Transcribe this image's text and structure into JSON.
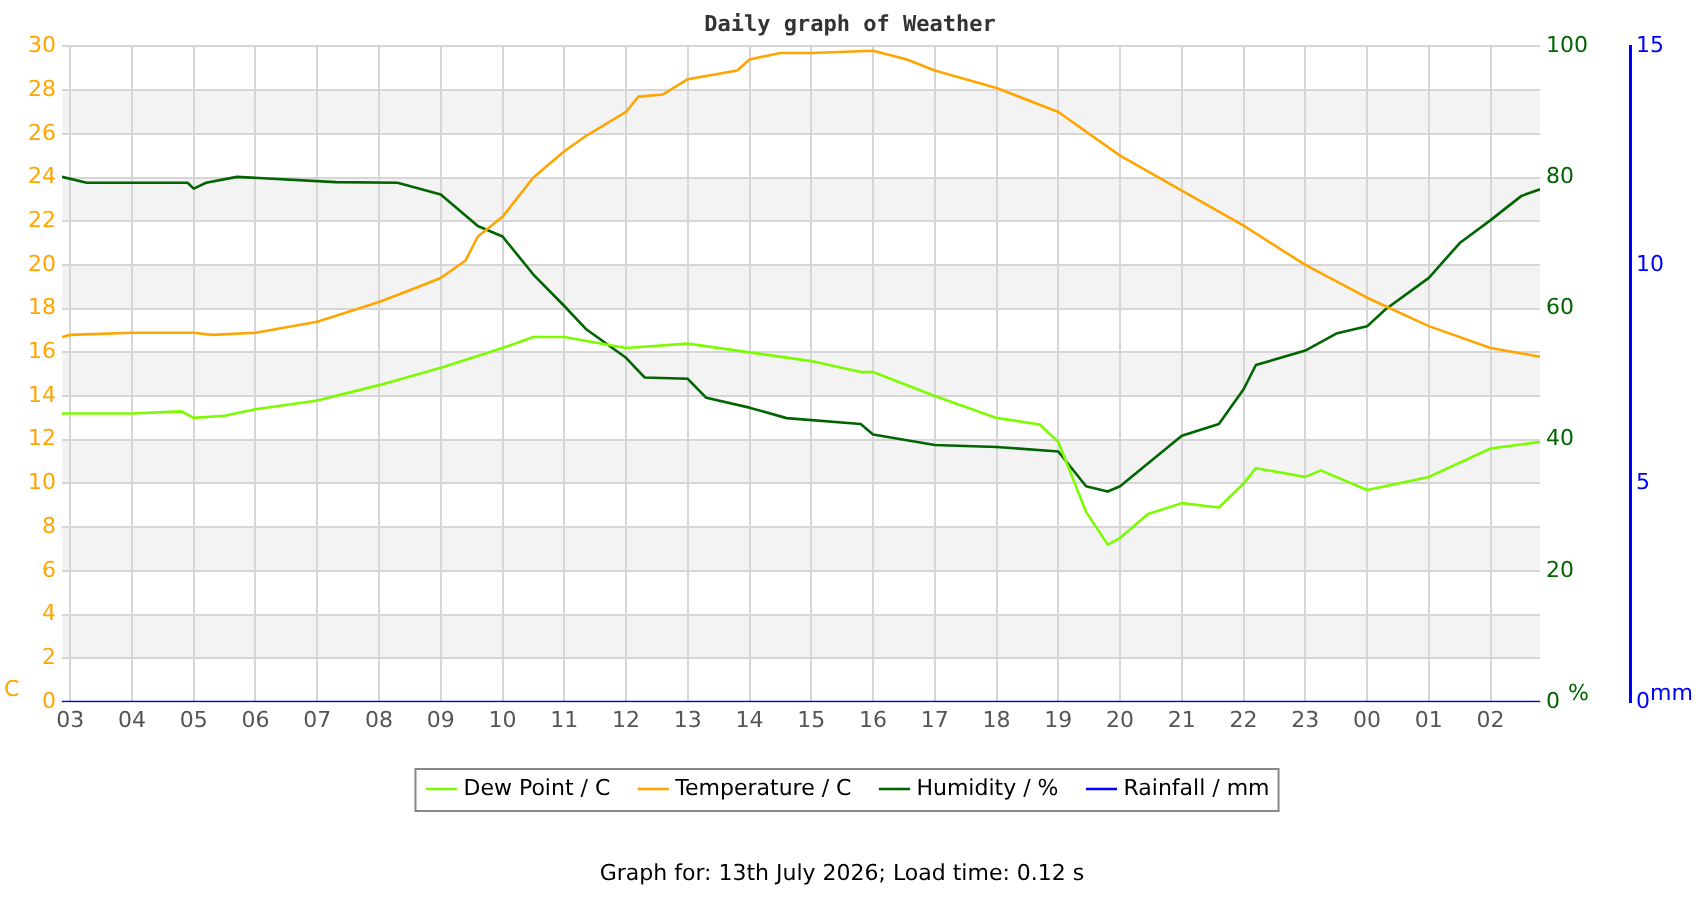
{
  "chart_data": {
    "type": "line",
    "title": "Daily graph of Weather",
    "ylabel": "C",
    "y2label": "%",
    "y3label": "mm",
    "annotations": [
      "Graph for: 13th July 2026; Load time: 0.12 s"
    ],
    "xlim": [
      "2026-07-13T02:52",
      "2026-07-14T02:48"
    ],
    "xticks": [
      {
        "value": "2026-07-13T03:00",
        "label": "03"
      },
      {
        "value": "2026-07-13T04:00",
        "label": "04"
      },
      {
        "value": "2026-07-13T05:00",
        "label": "05"
      },
      {
        "value": "2026-07-13T06:00",
        "label": "06"
      },
      {
        "value": "2026-07-13T07:00",
        "label": "07"
      },
      {
        "value": "2026-07-13T08:00",
        "label": "08"
      },
      {
        "value": "2026-07-13T09:00",
        "label": "09"
      },
      {
        "value": "2026-07-13T10:00",
        "label": "10"
      },
      {
        "value": "2026-07-13T11:00",
        "label": "11"
      },
      {
        "value": "2026-07-13T12:00",
        "label": "12"
      },
      {
        "value": "2026-07-13T13:00",
        "label": "13"
      },
      {
        "value": "2026-07-13T14:00",
        "label": "14"
      },
      {
        "value": "2026-07-13T15:00",
        "label": "15"
      },
      {
        "value": "2026-07-13T16:00",
        "label": "16"
      },
      {
        "value": "2026-07-13T17:00",
        "label": "17"
      },
      {
        "value": "2026-07-13T18:00",
        "label": "18"
      },
      {
        "value": "2026-07-13T19:00",
        "label": "19"
      },
      {
        "value": "2026-07-13T20:00",
        "label": "20"
      },
      {
        "value": "2026-07-13T21:00",
        "label": "21"
      },
      {
        "value": "2026-07-13T22:00",
        "label": "22"
      },
      {
        "value": "2026-07-13T23:00",
        "label": "23"
      },
      {
        "value": "2026-07-14T00:00",
        "label": "00"
      },
      {
        "value": "2026-07-14T01:00",
        "label": "01"
      },
      {
        "value": "2026-07-14T02:00",
        "label": "02"
      }
    ],
    "ylim": [
      0,
      30
    ],
    "yticks": [
      0,
      2,
      4,
      6,
      8,
      10,
      12,
      14,
      16,
      18,
      20,
      22,
      24,
      26,
      28,
      30
    ],
    "y2lim": [
      0,
      100
    ],
    "y2ticks": [
      0,
      20,
      40,
      60,
      80,
      100
    ],
    "y3lim": [
      0,
      15
    ],
    "y3ticks": [
      0,
      5,
      10,
      15
    ],
    "grid": true,
    "legend": "bottom",
    "marker": "none",
    "line_style": "solid",
    "series": [
      {
        "name": "Dew Point / C",
        "color": "#7cfc00",
        "x": [
          "2026-07-13T02:52",
          "2026-07-13T04:00",
          "2026-07-13T04:48",
          "2026-07-13T05:00",
          "2026-07-13T05:30",
          "2026-07-13T06:00",
          "2026-07-13T07:00",
          "2026-07-13T08:00",
          "2026-07-13T09:00",
          "2026-07-13T10:00",
          "2026-07-13T10:30",
          "2026-07-13T11:00",
          "2026-07-13T12:00",
          "2026-07-13T13:00",
          "2026-07-13T14:00",
          "2026-07-13T15:00",
          "2026-07-13T15:48",
          "2026-07-13T16:00",
          "2026-07-13T17:00",
          "2026-07-13T18:00",
          "2026-07-13T18:42",
          "2026-07-13T19:00",
          "2026-07-13T19:27",
          "2026-07-13T19:48",
          "2026-07-13T20:00",
          "2026-07-13T20:27",
          "2026-07-13T21:00",
          "2026-07-13T21:36",
          "2026-07-13T22:00",
          "2026-07-13T22:12",
          "2026-07-13T23:00",
          "2026-07-13T23:15",
          "2026-07-14T00:00",
          "2026-07-14T01:00",
          "2026-07-14T02:00",
          "2026-07-14T02:48"
        ],
        "values": [
          13.2,
          13.2,
          13.3,
          13.0,
          13.1,
          13.4,
          13.8,
          14.5,
          15.3,
          16.2,
          16.7,
          16.7,
          16.2,
          16.4,
          16.0,
          15.6,
          15.1,
          15.1,
          14.0,
          13.0,
          12.7,
          11.9,
          8.7,
          7.2,
          7.5,
          8.6,
          9.1,
          8.9,
          10.0,
          10.7,
          10.3,
          10.6,
          9.7,
          10.3,
          11.6,
          11.9
        ]
      },
      {
        "name": "Temperature / C",
        "color": "#ffa500",
        "x": [
          "2026-07-13T02:52",
          "2026-07-13T03:00",
          "2026-07-13T04:00",
          "2026-07-13T05:00",
          "2026-07-13T05:18",
          "2026-07-13T06:00",
          "2026-07-13T07:00",
          "2026-07-13T08:00",
          "2026-07-13T08:33",
          "2026-07-13T09:00",
          "2026-07-13T09:24",
          "2026-07-13T09:36",
          "2026-07-13T10:00",
          "2026-07-13T10:30",
          "2026-07-13T11:00",
          "2026-07-13T11:21",
          "2026-07-13T12:00",
          "2026-07-13T12:12",
          "2026-07-13T12:36",
          "2026-07-13T13:00",
          "2026-07-13T13:48",
          "2026-07-13T14:00",
          "2026-07-13T14:30",
          "2026-07-13T15:00",
          "2026-07-13T16:00",
          "2026-07-13T16:33",
          "2026-07-13T17:00",
          "2026-07-13T18:00",
          "2026-07-13T19:00",
          "2026-07-13T20:00",
          "2026-07-13T21:00",
          "2026-07-13T22:00",
          "2026-07-13T23:00",
          "2026-07-14T00:00",
          "2026-07-14T01:00",
          "2026-07-14T02:00",
          "2026-07-14T02:48"
        ],
        "values": [
          16.7,
          16.8,
          16.9,
          16.9,
          16.8,
          16.9,
          17.4,
          18.3,
          18.9,
          19.4,
          20.2,
          21.3,
          22.2,
          24.0,
          25.2,
          25.9,
          27.0,
          27.7,
          27.8,
          28.5,
          28.9,
          29.4,
          29.7,
          29.7,
          29.8,
          29.4,
          28.9,
          28.1,
          27.0,
          25.0,
          23.4,
          21.8,
          20.0,
          18.5,
          17.2,
          16.2,
          15.8
        ]
      },
      {
        "name": "Humidity / %",
        "color": "#006400",
        "axis": "y2",
        "x": [
          "2026-07-13T02:52",
          "2026-07-13T03:16",
          "2026-07-13T04:54",
          "2026-07-13T05:00",
          "2026-07-13T05:12",
          "2026-07-13T05:42",
          "2026-07-13T07:18",
          "2026-07-13T08:18",
          "2026-07-13T09:00",
          "2026-07-13T09:36",
          "2026-07-13T10:00",
          "2026-07-13T10:30",
          "2026-07-13T11:00",
          "2026-07-13T11:21",
          "2026-07-13T12:00",
          "2026-07-13T12:18",
          "2026-07-13T13:00",
          "2026-07-13T13:18",
          "2026-07-13T14:00",
          "2026-07-13T14:36",
          "2026-07-13T15:48",
          "2026-07-13T16:00",
          "2026-07-13T17:00",
          "2026-07-13T18:00",
          "2026-07-13T19:00",
          "2026-07-13T19:27",
          "2026-07-13T19:48",
          "2026-07-13T20:00",
          "2026-07-13T21:00",
          "2026-07-13T21:36",
          "2026-07-13T22:00",
          "2026-07-13T22:12",
          "2026-07-13T23:00",
          "2026-07-13T23:30",
          "2026-07-14T00:00",
          "2026-07-14T00:18",
          "2026-07-14T01:00",
          "2026-07-14T01:30",
          "2026-07-14T02:00",
          "2026-07-14T02:30",
          "2026-07-14T02:48"
        ],
        "values": [
          80.1,
          79.2,
          79.2,
          78.3,
          79.2,
          80.1,
          79.3,
          79.2,
          77.4,
          72.6,
          71.0,
          65.2,
          60.4,
          56.9,
          52.5,
          49.5,
          49.3,
          46.4,
          44.9,
          43.3,
          42.4,
          40.8,
          39.2,
          38.9,
          38.2,
          32.9,
          32.1,
          32.9,
          40.6,
          42.4,
          47.7,
          51.4,
          53.6,
          56.2,
          57.3,
          59.9,
          64.7,
          70.0,
          73.5,
          77.2,
          78.2
        ]
      },
      {
        "name": "Rainfall / mm",
        "color": "#0000ff",
        "axis": "y3",
        "x": [
          "2026-07-13T02:52",
          "2026-07-14T02:48"
        ],
        "values": [
          0,
          0
        ]
      }
    ]
  }
}
